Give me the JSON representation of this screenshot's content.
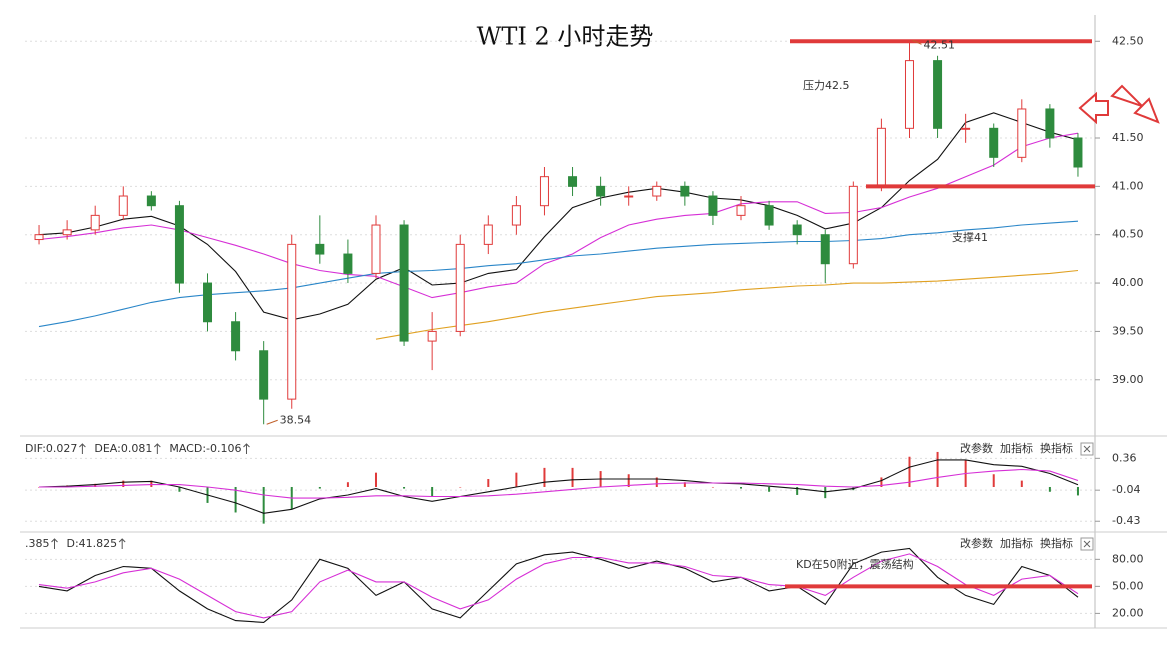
{
  "chart_data": [
    {
      "type": "candlestick",
      "title": "WTI 2 小时走势",
      "open": [
        40.45,
        40.5,
        40.55,
        40.7,
        40.9,
        40.8,
        40.0,
        39.6,
        39.3,
        38.8,
        40.4,
        40.3,
        40.1,
        40.6,
        39.4,
        39.5,
        40.4,
        40.6,
        40.8,
        41.1,
        41.0,
        40.9,
        40.9,
        41.0,
        40.9,
        40.7,
        40.8,
        40.6,
        40.5,
        40.2,
        41.0,
        41.6,
        42.3,
        41.6,
        41.6,
        41.3,
        41.8,
        41.5
      ],
      "high": [
        40.6,
        40.65,
        40.8,
        41.0,
        40.95,
        40.85,
        40.1,
        39.7,
        39.4,
        40.5,
        40.7,
        40.45,
        40.7,
        40.65,
        39.7,
        40.5,
        40.7,
        40.9,
        41.2,
        41.2,
        41.1,
        41.0,
        41.05,
        41.05,
        40.95,
        40.9,
        40.85,
        40.65,
        40.55,
        41.05,
        41.7,
        42.51,
        42.35,
        41.75,
        41.65,
        41.9,
        41.85,
        41.55
      ],
      "low": [
        40.4,
        40.45,
        40.5,
        40.65,
        40.75,
        39.9,
        39.5,
        39.2,
        38.54,
        38.7,
        40.2,
        40.0,
        40.05,
        39.35,
        39.1,
        39.45,
        40.3,
        40.5,
        40.7,
        40.9,
        40.8,
        40.8,
        40.85,
        40.8,
        40.6,
        40.65,
        40.55,
        40.4,
        40.0,
        40.15,
        40.95,
        41.5,
        41.5,
        41.45,
        41.2,
        41.25,
        41.4,
        41.1
      ],
      "close": [
        40.5,
        40.55,
        40.7,
        40.9,
        40.8,
        40.0,
        39.6,
        39.3,
        38.8,
        40.4,
        40.3,
        40.1,
        40.6,
        39.4,
        39.5,
        40.4,
        40.6,
        40.8,
        41.1,
        41.0,
        40.9,
        40.9,
        41.0,
        40.9,
        40.7,
        40.8,
        40.6,
        40.5,
        40.2,
        41.0,
        41.6,
        42.3,
        41.6,
        41.6,
        41.3,
        41.8,
        41.5,
        41.2
      ],
      "up_color": "#e03a3a",
      "down_color": "#2e8b3e",
      "series": [
        {
          "color": "#111111",
          "values": [
            40.5,
            40.52,
            40.58,
            40.66,
            40.69,
            40.59,
            40.4,
            40.12,
            39.7,
            39.62,
            39.68,
            39.78,
            40.04,
            40.16,
            39.98,
            40.0,
            40.1,
            40.14,
            40.48,
            40.78,
            40.88,
            40.94,
            40.98,
            40.94,
            40.88,
            40.86,
            40.8,
            40.7,
            40.56,
            40.62,
            40.78,
            41.06,
            41.28,
            41.66,
            41.76,
            41.66,
            41.56,
            41.48
          ]
        },
        {
          "color": "#d62fd6",
          "values": [
            40.45,
            40.48,
            40.52,
            40.57,
            40.6,
            40.55,
            40.47,
            40.39,
            40.3,
            40.2,
            40.13,
            40.09,
            40.07,
            39.96,
            39.85,
            39.9,
            39.96,
            40.0,
            40.2,
            40.3,
            40.47,
            40.6,
            40.66,
            40.7,
            40.72,
            40.82,
            40.84,
            40.84,
            40.72,
            40.73,
            40.78,
            40.89,
            40.98,
            41.1,
            41.22,
            41.41,
            41.5,
            41.55
          ]
        },
        {
          "color": "#2a86c8",
          "values": [
            39.55,
            39.6,
            39.66,
            39.73,
            39.8,
            39.85,
            39.88,
            39.9,
            39.92,
            39.95,
            40.0,
            40.05,
            40.1,
            40.12,
            40.13,
            40.15,
            40.18,
            40.2,
            40.24,
            40.28,
            40.3,
            40.33,
            40.36,
            40.38,
            40.4,
            40.41,
            40.42,
            40.43,
            40.43,
            40.44,
            40.46,
            40.5,
            40.52,
            40.55,
            40.57,
            40.6,
            40.62,
            40.64
          ]
        },
        {
          "color": "#e0a020",
          "values": [
            null,
            null,
            null,
            null,
            null,
            null,
            null,
            null,
            null,
            null,
            null,
            null,
            39.42,
            39.47,
            39.52,
            39.56,
            39.6,
            39.65,
            39.7,
            39.74,
            39.78,
            39.82,
            39.86,
            39.88,
            39.9,
            39.93,
            39.95,
            39.97,
            39.98,
            40.0,
            40.0,
            40.01,
            40.02,
            40.04,
            40.06,
            40.08,
            40.1,
            40.13
          ]
        }
      ],
      "ylim": [
        38.46,
        42.72
      ],
      "yticks": [
        {
          "value": 39,
          "label": "39.00"
        },
        {
          "value": 39.5,
          "label": "39.50"
        },
        {
          "value": 40,
          "label": "40.00"
        },
        {
          "value": 40.5,
          "label": "40.50"
        },
        {
          "value": 41,
          "label": "41.00"
        },
        {
          "value": 41.5,
          "label": "41.50"
        },
        {
          "value": 42.5,
          "label": "42.50"
        }
      ],
      "grid": true,
      "level_color": "#e03a3a",
      "levels": [
        {
          "value": 42.5,
          "label": "压力42.5"
        },
        {
          "value": 41,
          "label": "支撑41"
        }
      ],
      "extremes": [
        42.51,
        38.54
      ]
    },
    {
      "type": "macd",
      "header": [
        "DIF:0.027",
        "DEA:0.081",
        "MACD:-0.106"
      ],
      "buttons": [
        "改参数",
        "加指标",
        "换指标"
      ],
      "series": [
        {
          "color": "#111111",
          "values": [
            0.0,
            0.01,
            0.03,
            0.06,
            0.07,
            0.0,
            -0.1,
            -0.2,
            -0.33,
            -0.28,
            -0.15,
            -0.1,
            -0.02,
            -0.12,
            -0.18,
            -0.12,
            -0.06,
            0.0,
            0.06,
            0.09,
            0.1,
            0.1,
            0.1,
            0.08,
            0.05,
            0.04,
            0.01,
            -0.02,
            -0.06,
            -0.02,
            0.08,
            0.25,
            0.34,
            0.34,
            0.28,
            0.26,
            0.17,
            0.027
          ]
        },
        {
          "color": "#d62fd6",
          "values": [
            0.0,
            0.0,
            0.01,
            0.02,
            0.03,
            0.03,
            0.0,
            -0.04,
            -0.1,
            -0.14,
            -0.14,
            -0.13,
            -0.11,
            -0.11,
            -0.12,
            -0.12,
            -0.11,
            -0.09,
            -0.06,
            -0.03,
            0.0,
            0.02,
            0.04,
            0.05,
            0.05,
            0.05,
            0.04,
            0.03,
            0.01,
            0.0,
            0.02,
            0.06,
            0.12,
            0.17,
            0.2,
            0.22,
            0.2,
            0.081
          ]
        }
      ],
      "bars": [
        0.0,
        0.02,
        0.04,
        0.08,
        0.08,
        -0.06,
        -0.2,
        -0.32,
        -0.46,
        -0.28,
        -0.02,
        0.06,
        0.18,
        -0.02,
        -0.12,
        0.0,
        0.1,
        0.18,
        0.24,
        0.24,
        0.2,
        0.16,
        0.12,
        0.06,
        0.0,
        -0.02,
        -0.06,
        -0.1,
        -0.14,
        -0.04,
        0.12,
        0.38,
        0.44,
        0.34,
        0.16,
        0.08,
        -0.06,
        -0.106
      ],
      "up_color": "#e03a3a",
      "down_color": "#2e8b3e",
      "ylim": [
        -0.54,
        0.59
      ],
      "yticks": [
        0.36,
        -0.04,
        -0.43
      ],
      "grid": true
    },
    {
      "type": "kd",
      "header": [
        ".385",
        "D:41.825"
      ],
      "buttons": [
        "改参数",
        "加指标",
        "换指标"
      ],
      "series": [
        {
          "color": "#111111",
          "values": [
            50,
            45,
            62,
            72,
            70,
            45,
            25,
            12,
            10,
            35,
            80,
            70,
            40,
            55,
            25,
            15,
            45,
            75,
            85,
            88,
            80,
            70,
            78,
            70,
            55,
            60,
            45,
            50,
            30,
            75,
            88,
            92,
            60,
            40,
            30,
            72,
            62,
            38
          ]
        },
        {
          "color": "#d62fd6",
          "values": [
            52,
            48,
            55,
            65,
            70,
            58,
            40,
            22,
            15,
            22,
            55,
            68,
            55,
            55,
            38,
            25,
            35,
            58,
            75,
            82,
            82,
            76,
            76,
            72,
            62,
            60,
            52,
            50,
            40,
            60,
            78,
            86,
            72,
            52,
            40,
            58,
            62,
            41.825
          ]
        }
      ],
      "ylim": [
        6,
        107
      ],
      "yticks": [
        {
          "value": 80,
          "label": "80.00"
        },
        {
          "value": 50,
          "label": "50.00"
        },
        {
          "value": 20,
          "label": "20.00"
        }
      ],
      "grid": true,
      "level_color": "#e03a3a",
      "levels": [
        {
          "value": 50,
          "label": "KD在50附近，震荡结构"
        }
      ]
    }
  ]
}
